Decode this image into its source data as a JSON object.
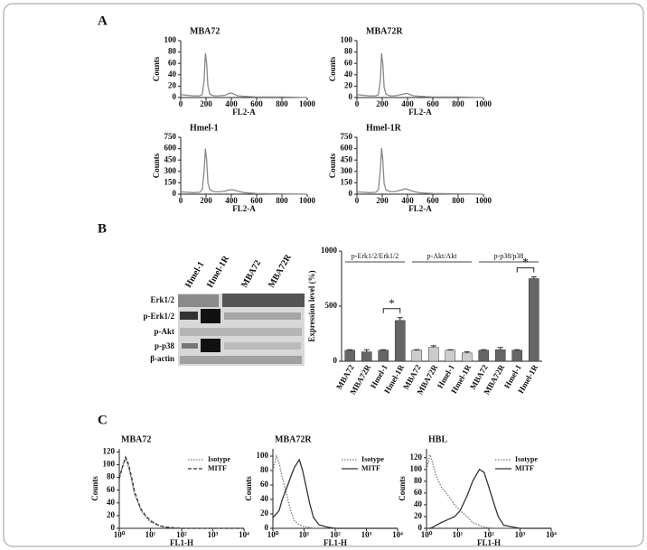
{
  "panel_labels": [
    "A",
    "B",
    "C"
  ],
  "blot": {
    "lanes": [
      "Hmel-1",
      "Hmel-1R",
      "MBA72",
      "MBA72R"
    ],
    "rows": [
      "Erk1/2",
      "p-Erk1/2",
      "p-Akt",
      "p-p38",
      "β-actin"
    ]
  },
  "chart_data": [
    {
      "type": "line",
      "title": "MBA72",
      "xlabel": "FL2-A",
      "ylabel": "Counts",
      "x": [
        0,
        50,
        100,
        150,
        170,
        185,
        195,
        205,
        215,
        230,
        260,
        300,
        350,
        380,
        400,
        420,
        450,
        500,
        600,
        800,
        1000
      ],
      "series": [
        {
          "name": "MBA72",
          "color": "#888888",
          "dash": "solid",
          "values": [
            5,
            4,
            3,
            3,
            5,
            30,
            78,
            60,
            20,
            6,
            3,
            3,
            4,
            7,
            8,
            6,
            3,
            2,
            1,
            1,
            0
          ]
        }
      ],
      "xlim": [
        0,
        1000
      ],
      "ylim": [
        0,
        100
      ],
      "xticks": [
        0,
        200,
        400,
        600,
        800,
        1000
      ],
      "yticks": [
        0,
        20,
        40,
        60,
        80,
        100
      ]
    },
    {
      "type": "line",
      "title": "MBA72R",
      "xlabel": "FL2-A",
      "ylabel": "Counts",
      "x": [
        0,
        50,
        100,
        150,
        170,
        185,
        195,
        205,
        215,
        230,
        260,
        300,
        350,
        380,
        400,
        420,
        450,
        500,
        600,
        800,
        1000
      ],
      "series": [
        {
          "name": "MBA72R",
          "color": "#888888",
          "dash": "solid",
          "values": [
            5,
            4,
            3,
            3,
            5,
            30,
            78,
            58,
            18,
            6,
            3,
            3,
            5,
            7,
            7,
            5,
            3,
            2,
            1,
            1,
            0
          ]
        }
      ],
      "xlim": [
        0,
        1000
      ],
      "ylim": [
        0,
        100
      ],
      "xticks": [
        0,
        200,
        400,
        600,
        800,
        1000
      ],
      "yticks": [
        0,
        20,
        40,
        60,
        80,
        100
      ]
    },
    {
      "type": "line",
      "title": "Hmel-1",
      "xlabel": "FL2-A",
      "ylabel": "Counts",
      "x": [
        0,
        50,
        100,
        150,
        170,
        185,
        195,
        205,
        215,
        230,
        260,
        300,
        350,
        380,
        400,
        420,
        450,
        500,
        600,
        800,
        1000
      ],
      "series": [
        {
          "name": "Hmel-1",
          "color": "#888888",
          "dash": "solid",
          "values": [
            30,
            25,
            20,
            25,
            60,
            300,
            600,
            450,
            150,
            60,
            35,
            30,
            40,
            55,
            60,
            55,
            40,
            20,
            8,
            3,
            0
          ]
        }
      ],
      "xlim": [
        0,
        1000
      ],
      "ylim": [
        0,
        750
      ],
      "xticks": [
        0,
        200,
        400,
        600,
        800,
        1000
      ],
      "yticks": [
        0,
        150,
        300,
        450,
        600,
        750
      ]
    },
    {
      "type": "line",
      "title": "Hmel-1R",
      "xlabel": "FL2-A",
      "ylabel": "Counts",
      "x": [
        0,
        50,
        100,
        150,
        170,
        185,
        195,
        205,
        215,
        230,
        260,
        300,
        350,
        380,
        400,
        420,
        450,
        500,
        600,
        800,
        1000
      ],
      "series": [
        {
          "name": "Hmel-1R",
          "color": "#888888",
          "dash": "solid",
          "values": [
            30,
            25,
            20,
            25,
            60,
            320,
            610,
            440,
            140,
            55,
            35,
            35,
            55,
            70,
            65,
            50,
            35,
            18,
            8,
            3,
            0
          ]
        }
      ],
      "xlim": [
        0,
        1000
      ],
      "ylim": [
        0,
        750
      ],
      "xticks": [
        0,
        200,
        400,
        600,
        800,
        1000
      ],
      "yticks": [
        0,
        150,
        300,
        450,
        600,
        750
      ]
    },
    {
      "type": "bar",
      "ylabel": "Expression level (%)",
      "categories": [
        "MBA72",
        "MBA72R",
        "Hmel-1",
        "Hmel-1R",
        "MBA72",
        "MBA72R",
        "Hmel-1",
        "Hmel-1R",
        "MBA72",
        "MBA72R",
        "Hmel-1",
        "Hmel-1R"
      ],
      "values": [
        100,
        85,
        100,
        370,
        100,
        125,
        100,
        75,
        100,
        105,
        100,
        750
      ],
      "errors": [
        5,
        20,
        5,
        25,
        5,
        15,
        5,
        10,
        5,
        20,
        5,
        15
      ],
      "colors": [
        "#666666",
        "#666666",
        "#666666",
        "#666666",
        "#cccccc",
        "#cccccc",
        "#cccccc",
        "#cccccc",
        "#666666",
        "#666666",
        "#666666",
        "#666666"
      ],
      "groups": [
        "p-Erk1/2/Erk1/2",
        "p-Akt/Akt",
        "p-p38/p38"
      ],
      "annotations": [
        "*",
        "*"
      ],
      "ylim": [
        0,
        1000
      ],
      "yticks": [
        0,
        500,
        1000
      ]
    },
    {
      "type": "line",
      "title": "MBA72",
      "xlabel": "FL1-H",
      "ylabel": "Counts",
      "log_x": true,
      "x": [
        1,
        1.3,
        1.6,
        2,
        2.5,
        3,
        4,
        5,
        7,
        10,
        15,
        20,
        30,
        50,
        100,
        1000,
        10000
      ],
      "series": [
        {
          "name": "Isotype",
          "color": "#777777",
          "dash": "dotted",
          "values": [
            80,
            100,
            110,
            95,
            75,
            55,
            40,
            28,
            18,
            10,
            6,
            4,
            2,
            1,
            0,
            0,
            0
          ]
        },
        {
          "name": "MITF",
          "color": "#333333",
          "dash": "dashed",
          "values": [
            78,
            98,
            112,
            100,
            80,
            60,
            42,
            30,
            20,
            12,
            7,
            4,
            2,
            1,
            0,
            0,
            0
          ]
        }
      ],
      "xlim": [
        1,
        10000
      ],
      "ylim": [
        0,
        125
      ],
      "xticks": [
        {
          "value": 1,
          "label": "10⁰"
        },
        {
          "value": 10,
          "label": "10¹"
        },
        {
          "value": 100,
          "label": "10²"
        },
        {
          "value": 1000,
          "label": "10³"
        },
        {
          "value": 10000,
          "label": "10⁴"
        }
      ],
      "yticks": [
        0,
        20,
        40,
        60,
        80,
        100,
        120
      ]
    },
    {
      "type": "line",
      "title": "MBA72R",
      "xlabel": "FL1-H",
      "ylabel": "Counts",
      "log_x": true,
      "x": [
        1,
        1.3,
        1.6,
        2,
        3,
        4,
        5,
        7,
        9,
        12,
        15,
        20,
        30,
        50,
        100,
        1000,
        10000
      ],
      "series": [
        {
          "name": "Isotype",
          "color": "#777777",
          "dash": "dotted",
          "values": [
            80,
            100,
            90,
            70,
            40,
            20,
            10,
            5,
            3,
            2,
            1,
            0,
            0,
            0,
            0,
            0,
            0
          ]
        },
        {
          "name": "MITF",
          "color": "#333333",
          "dash": "solid",
          "values": [
            15,
            20,
            25,
            40,
            60,
            75,
            85,
            95,
            80,
            55,
            35,
            15,
            5,
            2,
            0,
            0,
            0
          ]
        }
      ],
      "xlim": [
        1,
        10000
      ],
      "ylim": [
        0,
        110
      ],
      "xticks": [
        {
          "value": 1,
          "label": "10⁰"
        },
        {
          "value": 10,
          "label": "10¹"
        },
        {
          "value": 100,
          "label": "10²"
        },
        {
          "value": 1000,
          "label": "10³"
        },
        {
          "value": 10000,
          "label": "10⁴"
        }
      ],
      "yticks": [
        0,
        20,
        40,
        60,
        80,
        100
      ]
    },
    {
      "type": "line",
      "title": "HBL",
      "xlabel": "FL1-H",
      "ylabel": "Counts",
      "log_x": true,
      "x": [
        1,
        1.3,
        1.6,
        2,
        3,
        5,
        8,
        12,
        20,
        30,
        50,
        70,
        100,
        150,
        200,
        300,
        1000,
        10000
      ],
      "series": [
        {
          "name": "Isotype",
          "color": "#777777",
          "dash": "dotted",
          "values": [
            100,
            125,
            110,
            90,
            70,
            55,
            40,
            30,
            20,
            10,
            5,
            2,
            1,
            0,
            0,
            0,
            0,
            0
          ]
        },
        {
          "name": "MITF",
          "color": "#333333",
          "dash": "solid",
          "values": [
            0,
            0,
            2,
            5,
            10,
            15,
            20,
            30,
            55,
            80,
            100,
            95,
            70,
            40,
            20,
            5,
            0,
            0
          ]
        }
      ],
      "xlim": [
        1,
        10000
      ],
      "ylim": [
        0,
        135
      ],
      "xticks": [
        {
          "value": 1,
          "label": "10⁰"
        },
        {
          "value": 10,
          "label": "10¹"
        },
        {
          "value": 100,
          "label": "10²"
        },
        {
          "value": 1000,
          "label": "10³"
        },
        {
          "value": 10000,
          "label": "10⁴"
        }
      ],
      "yticks": [
        0,
        20,
        40,
        60,
        80,
        100,
        120
      ]
    }
  ]
}
